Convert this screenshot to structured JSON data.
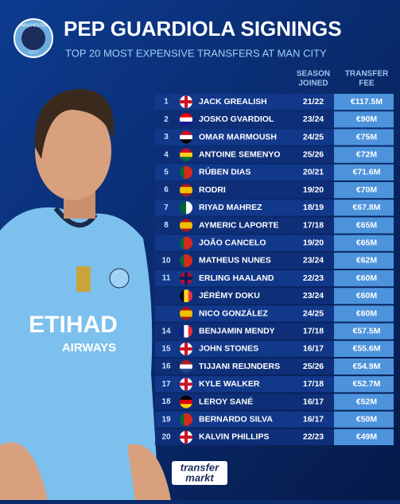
{
  "header": {
    "title": "PEP GUARDIOLA SIGNINGS",
    "subtitle": "TOP 20 MOST EXPENSIVE TRANSFERS AT MAN CITY",
    "badge_top": "MANCHESTER",
    "badge_bottom": "CITY"
  },
  "table": {
    "headers": {
      "season": [
        "SEASON",
        "JOINED"
      ],
      "fee": [
        "TRANSFER",
        "FEE"
      ]
    },
    "rows": [
      {
        "rank": "1",
        "player": "JACK GREALISH",
        "season": "21/22",
        "fee": "€117.5M"
      },
      {
        "rank": "2",
        "player": "JOSKO GVARDIOL",
        "season": "23/24",
        "fee": "€90M"
      },
      {
        "rank": "3",
        "player": "OMAR MARMOUSH",
        "season": "24/25",
        "fee": "€75M"
      },
      {
        "rank": "4",
        "player": "ANTOINE SEMENYO",
        "season": "25/26",
        "fee": "€72M"
      },
      {
        "rank": "5",
        "player": "RÚBEN DIAS",
        "season": "20/21",
        "fee": "€71.6M"
      },
      {
        "rank": "6",
        "player": "RODRI",
        "season": "19/20",
        "fee": "€70M"
      },
      {
        "rank": "7",
        "player": "RIYAD MAHREZ",
        "season": "18/19",
        "fee": "€67.8M"
      },
      {
        "rank": "8",
        "player": "AYMERIC LAPORTE",
        "season": "17/18",
        "fee": "€65M"
      },
      {
        "player": "JOÃO CANCELO",
        "season": "19/20",
        "fee": "€65M"
      },
      {
        "rank": "10",
        "player": "MATHEUS NUNES",
        "season": "23/24",
        "fee": "€62M"
      },
      {
        "rank": "11",
        "player": "ERLING HAALAND",
        "season": "22/23",
        "fee": "€60M"
      },
      {
        "player": "JÉRÉMY DOKU",
        "season": "23/24",
        "fee": "€60M"
      },
      {
        "player": "NICO GONZÁLEZ",
        "season": "24/25",
        "fee": "€60M"
      },
      {
        "rank": "14",
        "player": "BENJAMIN MENDY",
        "season": "17/18",
        "fee": "€57.5M"
      },
      {
        "rank": "15",
        "player": "JOHN STONES",
        "season": "16/17",
        "fee": "€55.6M"
      },
      {
        "rank": "16",
        "player": "TIJJANI REIJNDERS",
        "season": "25/26",
        "fee": "€54.9M"
      },
      {
        "rank": "17",
        "player": "KYLE WALKER",
        "season": "17/18",
        "fee": "€52.7M"
      },
      {
        "rank": "18",
        "player": "LEROY SANÉ",
        "season": "16/17",
        "fee": "€52M"
      },
      {
        "rank": "19",
        "player": "BERNARDO SILVA",
        "season": "16/17",
        "fee": "€50M"
      },
      {
        "rank": "20",
        "player": "KALVIN PHILLIPS",
        "season": "22/23",
        "fee": "€49M"
      }
    ]
  },
  "shirt": {
    "sponsor": "ETIHAD",
    "sponsor_sub": "AIRWAYS"
  },
  "footer": {
    "logo_top": "transfer",
    "logo_bottom": "markt"
  }
}
